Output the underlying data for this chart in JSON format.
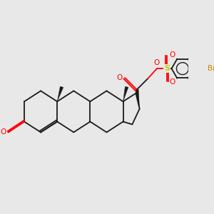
{
  "bg_color": "#e8e8e8",
  "line_color": "#1a1a1a",
  "o_color": "#ff0000",
  "s_color": "#cccc00",
  "br_color": "#cc8800",
  "bond_lw": 1.3,
  "fig_w": 3.0,
  "fig_h": 3.0,
  "dpi": 100,
  "xlim": [
    0,
    10
  ],
  "ylim": [
    0,
    10
  ]
}
